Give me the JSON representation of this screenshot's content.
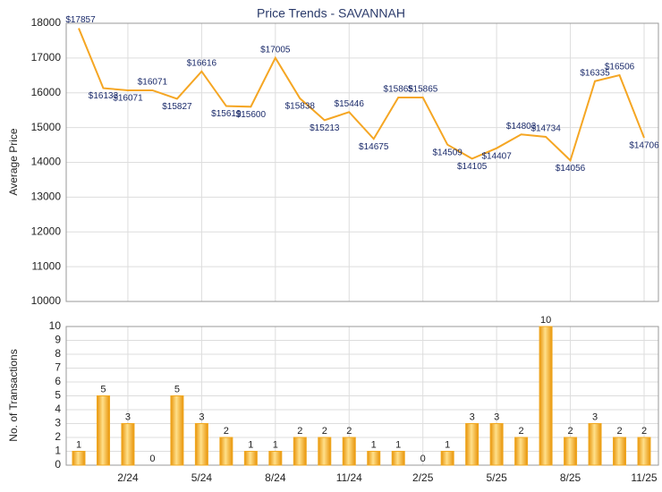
{
  "chart_data": [
    {
      "type": "line",
      "title": "Price Trends - SAVANNAH",
      "ylabel": "Average Price",
      "values": [
        17857,
        16133,
        16071,
        16071,
        15827,
        16616,
        15619,
        15600,
        17005,
        15838,
        15213,
        15446,
        14675,
        15865,
        15865,
        14509,
        14105,
        14407,
        14803,
        14734,
        14056,
        16335,
        16506,
        14706
      ],
      "value_labels": [
        "$17857",
        "$16133",
        "$16071",
        "$16071",
        "$15827",
        "$16616",
        "$15619",
        "$15600",
        "$17005",
        "$15838",
        "$15213",
        "$15446",
        "$14675",
        "$15865",
        "$15865",
        "$14509",
        "$14105",
        "$14407",
        "$14803",
        "$14734",
        "$14056",
        "$16335",
        "$16506",
        "$14706"
      ],
      "color": "#f5a623",
      "ylim": [
        10000,
        18000
      ],
      "yticks": [
        10000,
        11000,
        12000,
        13000,
        14000,
        15000,
        16000,
        17000,
        18000
      ],
      "grid": true
    },
    {
      "type": "bar",
      "ylabel": "No. of Transactions",
      "categories": [
        null,
        null,
        "2/24",
        null,
        null,
        "5/24",
        null,
        null,
        "8/24",
        null,
        null,
        "11/24",
        null,
        null,
        "2/25",
        null,
        null,
        "5/25",
        null,
        null,
        "8/25",
        null,
        null,
        "11/25"
      ],
      "values": [
        1,
        5,
        3,
        0,
        5,
        3,
        2,
        1,
        1,
        2,
        2,
        2,
        1,
        1,
        0,
        1,
        3,
        3,
        2,
        10,
        2,
        3,
        2,
        2
      ],
      "color": "#f0a820",
      "ylim": [
        0,
        10
      ],
      "yticks": [
        0,
        1,
        2,
        3,
        4,
        5,
        6,
        7,
        8,
        9,
        10
      ],
      "grid": true
    }
  ]
}
